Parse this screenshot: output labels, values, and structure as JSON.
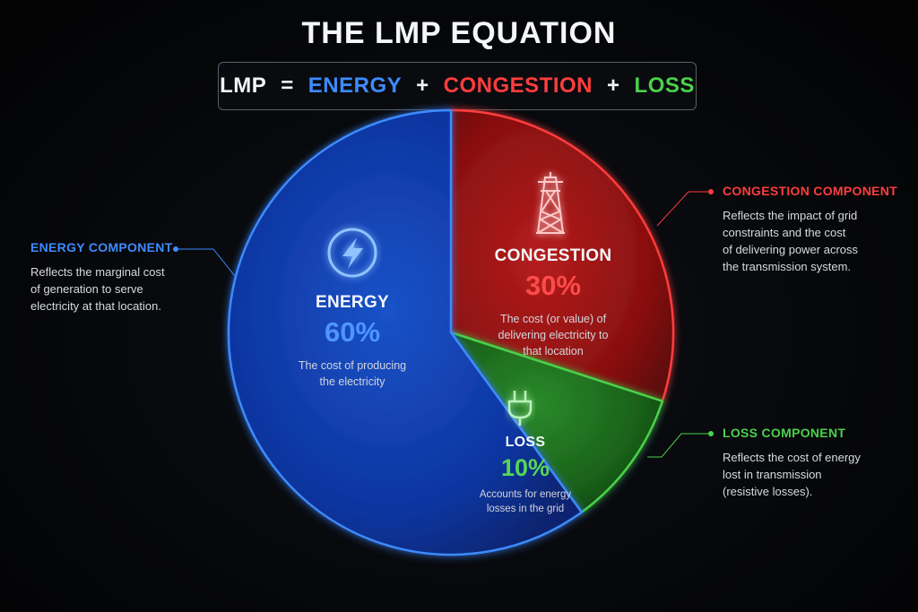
{
  "title": "THE LMP EQUATION",
  "equation": {
    "lhs": "LMP",
    "eq": "=",
    "plus": "+",
    "term1": "ENERGY",
    "term2": "CONGESTION",
    "term3": "LOSS"
  },
  "colors": {
    "energy": "#3d8bff",
    "congestion": "#ff3d3d",
    "loss": "#4bd14b"
  },
  "chart_data": {
    "type": "pie",
    "title": "THE LMP EQUATION",
    "categories": [
      "ENERGY",
      "CONGESTION",
      "LOSS"
    ],
    "values": [
      60,
      30,
      10
    ],
    "value_labels": [
      "60%",
      "30%",
      "10%"
    ],
    "descriptions": [
      "The cost of producing the electricity",
      "The cost (or value) of delivering electricity to that location",
      "Accounts for energy losses in the grid"
    ],
    "icons": [
      "lightning-bolt-icon",
      "transmission-tower-icon",
      "power-plug-icon"
    ]
  },
  "callouts": {
    "energy": {
      "heading": "ENERGY COMPONENT",
      "body": [
        "Reflects the marginal cost",
        "of generation to serve",
        "electricity at that location."
      ]
    },
    "congestion": {
      "heading": "CONGESTION COMPONENT",
      "body": [
        "Reflects the impact of grid",
        "constraints and the cost",
        "of delivering power across",
        "the transmission system."
      ]
    },
    "loss": {
      "heading": "LOSS COMPONENT",
      "body": [
        "Reflects the cost of energy",
        "lost in transmission",
        "(resistive losses)."
      ]
    }
  }
}
